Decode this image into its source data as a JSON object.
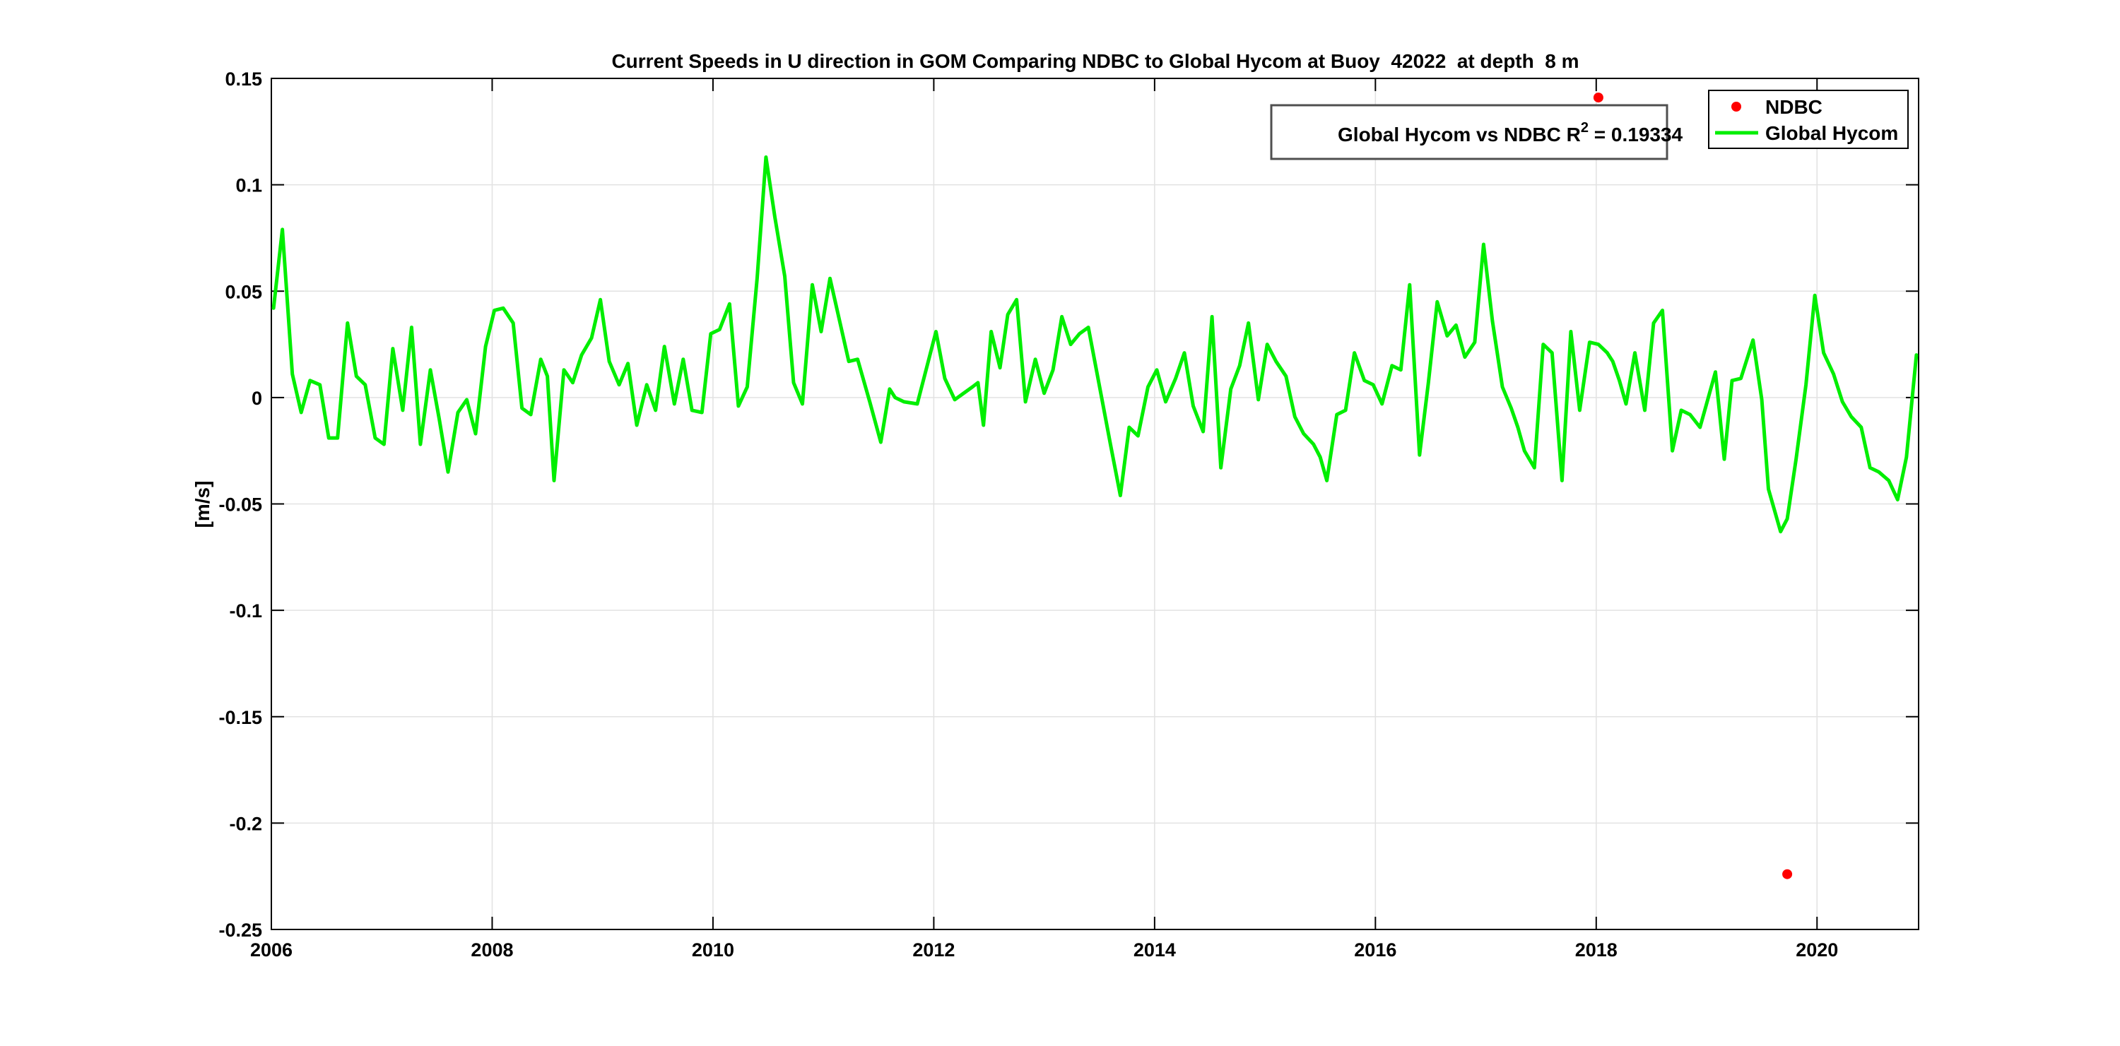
{
  "colors": {
    "hycom_line": "#00ee00",
    "ndbc_marker": "#ff0000",
    "grid": "#e2e2e2",
    "axis": "#000000",
    "annotation_border": "#4f4f4f",
    "legend_border": "#000000",
    "background": "#ffffff"
  },
  "annotation": {
    "prefix": "Global Hycom vs NDBC R",
    "sup": "2",
    "suffix": " = 0.19334"
  },
  "legend": {
    "items": [
      {
        "label": "NDBC",
        "marker": "red-filled-circle"
      },
      {
        "label": "Global Hycom",
        "marker": "green-line"
      }
    ]
  },
  "chart_data": {
    "type": "line",
    "title": "Current Speeds in U direction in GOM Comparing NDBC to Global Hycom at Buoy  42022  at depth  8 m",
    "xlabel": "",
    "ylabel": "[m/s]",
    "xlim": [
      2006,
      2020.92
    ],
    "ylim": [
      -0.25,
      0.15
    ],
    "grid": true,
    "legend_position": "northeast-inside",
    "x_ticks": [
      {
        "label": "2006",
        "value": 2006
      },
      {
        "label": "2008",
        "value": 2008
      },
      {
        "label": "2010",
        "value": 2010
      },
      {
        "label": "2012",
        "value": 2012
      },
      {
        "label": "2014",
        "value": 2014
      },
      {
        "label": "2016",
        "value": 2016
      },
      {
        "label": "2018",
        "value": 2018
      },
      {
        "label": "2020",
        "value": 2020
      }
    ],
    "y_ticks": [
      {
        "label": "0.15",
        "value": 0.15
      },
      {
        "label": "0.1",
        "value": 0.1
      },
      {
        "label": "0.05",
        "value": 0.05
      },
      {
        "label": "0",
        "value": 0
      },
      {
        "label": "-0.05",
        "value": -0.05
      },
      {
        "label": "-0.1",
        "value": -0.1
      },
      {
        "label": "-0.15",
        "value": -0.15
      },
      {
        "label": "-0.2",
        "value": -0.2
      },
      {
        "label": "-0.25",
        "value": -0.25
      }
    ],
    "series": [
      {
        "name": "NDBC",
        "type": "scatter",
        "color": "#ff0000",
        "marker": "filled-circle",
        "points": [
          [
            2018.02,
            0.141
          ],
          [
            2019.73,
            -0.224
          ]
        ]
      },
      {
        "name": "Global Hycom",
        "type": "line",
        "color": "#00ee00",
        "points": [
          [
            2006.02,
            0.042
          ],
          [
            2006.1,
            0.079
          ],
          [
            2006.19,
            0.011
          ],
          [
            2006.27,
            -0.007
          ],
          [
            2006.35,
            0.008
          ],
          [
            2006.44,
            0.006
          ],
          [
            2006.52,
            -0.019
          ],
          [
            2006.6,
            -0.019
          ],
          [
            2006.69,
            0.035
          ],
          [
            2006.77,
            0.01
          ],
          [
            2006.85,
            0.006
          ],
          [
            2006.94,
            -0.019
          ],
          [
            2007.02,
            -0.022
          ],
          [
            2007.1,
            0.023
          ],
          [
            2007.19,
            -0.006
          ],
          [
            2007.27,
            0.033
          ],
          [
            2007.35,
            -0.022
          ],
          [
            2007.44,
            0.013
          ],
          [
            2007.52,
            -0.01
          ],
          [
            2007.6,
            -0.035
          ],
          [
            2007.69,
            -0.007
          ],
          [
            2007.77,
            -0.001
          ],
          [
            2007.85,
            -0.017
          ],
          [
            2007.94,
            0.024
          ],
          [
            2008.02,
            0.041
          ],
          [
            2008.1,
            0.042
          ],
          [
            2008.19,
            0.035
          ],
          [
            2008.27,
            -0.005
          ],
          [
            2008.35,
            -0.008
          ],
          [
            2008.44,
            0.018
          ],
          [
            2008.5,
            0.01
          ],
          [
            2008.56,
            -0.039
          ],
          [
            2008.65,
            0.013
          ],
          [
            2008.73,
            0.007
          ],
          [
            2008.81,
            0.02
          ],
          [
            2008.9,
            0.028
          ],
          [
            2008.98,
            0.046
          ],
          [
            2009.06,
            0.017
          ],
          [
            2009.15,
            0.006
          ],
          [
            2009.23,
            0.016
          ],
          [
            2009.31,
            -0.013
          ],
          [
            2009.4,
            0.006
          ],
          [
            2009.48,
            -0.006
          ],
          [
            2009.56,
            0.024
          ],
          [
            2009.65,
            -0.003
          ],
          [
            2009.73,
            0.018
          ],
          [
            2009.81,
            -0.006
          ],
          [
            2009.9,
            -0.007
          ],
          [
            2009.98,
            0.03
          ],
          [
            2010.06,
            0.032
          ],
          [
            2010.15,
            0.044
          ],
          [
            2010.23,
            -0.004
          ],
          [
            2010.31,
            0.005
          ],
          [
            2010.4,
            0.056
          ],
          [
            2010.48,
            0.113
          ],
          [
            2010.56,
            0.085
          ],
          [
            2010.65,
            0.057
          ],
          [
            2010.73,
            0.007
          ],
          [
            2010.81,
            -0.003
          ],
          [
            2010.9,
            0.053
          ],
          [
            2010.98,
            0.031
          ],
          [
            2011.06,
            0.056
          ],
          [
            2011.23,
            0.017
          ],
          [
            2011.31,
            0.018
          ],
          [
            2011.42,
            -0.002
          ],
          [
            2011.52,
            -0.021
          ],
          [
            2011.6,
            0.004
          ],
          [
            2011.65,
            0.0
          ],
          [
            2011.73,
            -0.002
          ],
          [
            2011.85,
            -0.003
          ],
          [
            2012.02,
            0.031
          ],
          [
            2012.1,
            0.009
          ],
          [
            2012.19,
            -0.001
          ],
          [
            2012.27,
            0.002
          ],
          [
            2012.35,
            0.005
          ],
          [
            2012.4,
            0.007
          ],
          [
            2012.45,
            -0.013
          ],
          [
            2012.52,
            0.031
          ],
          [
            2012.6,
            0.014
          ],
          [
            2012.67,
            0.039
          ],
          [
            2012.75,
            0.046
          ],
          [
            2012.83,
            -0.002
          ],
          [
            2012.92,
            0.018
          ],
          [
            2013.0,
            0.002
          ],
          [
            2013.08,
            0.013
          ],
          [
            2013.16,
            0.038
          ],
          [
            2013.24,
            0.025
          ],
          [
            2013.32,
            0.03
          ],
          [
            2013.4,
            0.033
          ],
          [
            2013.52,
            0.0
          ],
          [
            2013.6,
            -0.022
          ],
          [
            2013.69,
            -0.046
          ],
          [
            2013.77,
            -0.014
          ],
          [
            2013.85,
            -0.018
          ],
          [
            2013.94,
            0.005
          ],
          [
            2014.02,
            0.013
          ],
          [
            2014.1,
            -0.002
          ],
          [
            2014.19,
            0.009
          ],
          [
            2014.27,
            0.021
          ],
          [
            2014.35,
            -0.004
          ],
          [
            2014.44,
            -0.016
          ],
          [
            2014.52,
            0.038
          ],
          [
            2014.6,
            -0.033
          ],
          [
            2014.69,
            0.004
          ],
          [
            2014.77,
            0.015
          ],
          [
            2014.85,
            0.035
          ],
          [
            2014.94,
            -0.001
          ],
          [
            2015.02,
            0.025
          ],
          [
            2015.1,
            0.017
          ],
          [
            2015.19,
            0.01
          ],
          [
            2015.27,
            -0.009
          ],
          [
            2015.35,
            -0.017
          ],
          [
            2015.44,
            -0.022
          ],
          [
            2015.5,
            -0.028
          ],
          [
            2015.56,
            -0.039
          ],
          [
            2015.65,
            -0.008
          ],
          [
            2015.73,
            -0.006
          ],
          [
            2015.81,
            0.021
          ],
          [
            2015.9,
            0.008
          ],
          [
            2015.98,
            0.006
          ],
          [
            2016.06,
            -0.003
          ],
          [
            2016.15,
            0.015
          ],
          [
            2016.23,
            0.013
          ],
          [
            2016.31,
            0.053
          ],
          [
            2016.4,
            -0.027
          ],
          [
            2016.48,
            0.007
          ],
          [
            2016.56,
            0.045
          ],
          [
            2016.65,
            0.029
          ],
          [
            2016.73,
            0.034
          ],
          [
            2016.81,
            0.019
          ],
          [
            2016.9,
            0.026
          ],
          [
            2016.98,
            0.072
          ],
          [
            2017.06,
            0.036
          ],
          [
            2017.15,
            0.005
          ],
          [
            2017.23,
            -0.005
          ],
          [
            2017.29,
            -0.014
          ],
          [
            2017.35,
            -0.025
          ],
          [
            2017.44,
            -0.033
          ],
          [
            2017.52,
            0.025
          ],
          [
            2017.6,
            0.021
          ],
          [
            2017.69,
            -0.039
          ],
          [
            2017.77,
            0.031
          ],
          [
            2017.85,
            -0.006
          ],
          [
            2017.94,
            0.026
          ],
          [
            2018.02,
            0.025
          ],
          [
            2018.1,
            0.021
          ],
          [
            2018.15,
            0.017
          ],
          [
            2018.21,
            0.008
          ],
          [
            2018.27,
            -0.003
          ],
          [
            2018.35,
            0.021
          ],
          [
            2018.44,
            -0.006
          ],
          [
            2018.52,
            0.035
          ],
          [
            2018.6,
            0.041
          ],
          [
            2018.69,
            -0.025
          ],
          [
            2018.77,
            -0.006
          ],
          [
            2018.85,
            -0.008
          ],
          [
            2018.94,
            -0.014
          ],
          [
            2019.08,
            0.012
          ],
          [
            2019.16,
            -0.029
          ],
          [
            2019.23,
            0.008
          ],
          [
            2019.31,
            0.009
          ],
          [
            2019.42,
            0.027
          ],
          [
            2019.5,
            -0.001
          ],
          [
            2019.56,
            -0.043
          ],
          [
            2019.67,
            -0.063
          ],
          [
            2019.73,
            -0.057
          ],
          [
            2019.81,
            -0.029
          ],
          [
            2019.9,
            0.006
          ],
          [
            2019.98,
            0.048
          ],
          [
            2020.06,
            0.021
          ],
          [
            2020.15,
            0.011
          ],
          [
            2020.23,
            -0.002
          ],
          [
            2020.31,
            -0.009
          ],
          [
            2020.4,
            -0.014
          ],
          [
            2020.48,
            -0.033
          ],
          [
            2020.56,
            -0.035
          ],
          [
            2020.65,
            -0.039
          ],
          [
            2020.73,
            -0.048
          ],
          [
            2020.81,
            -0.028
          ],
          [
            2020.9,
            0.02
          ]
        ]
      }
    ]
  }
}
